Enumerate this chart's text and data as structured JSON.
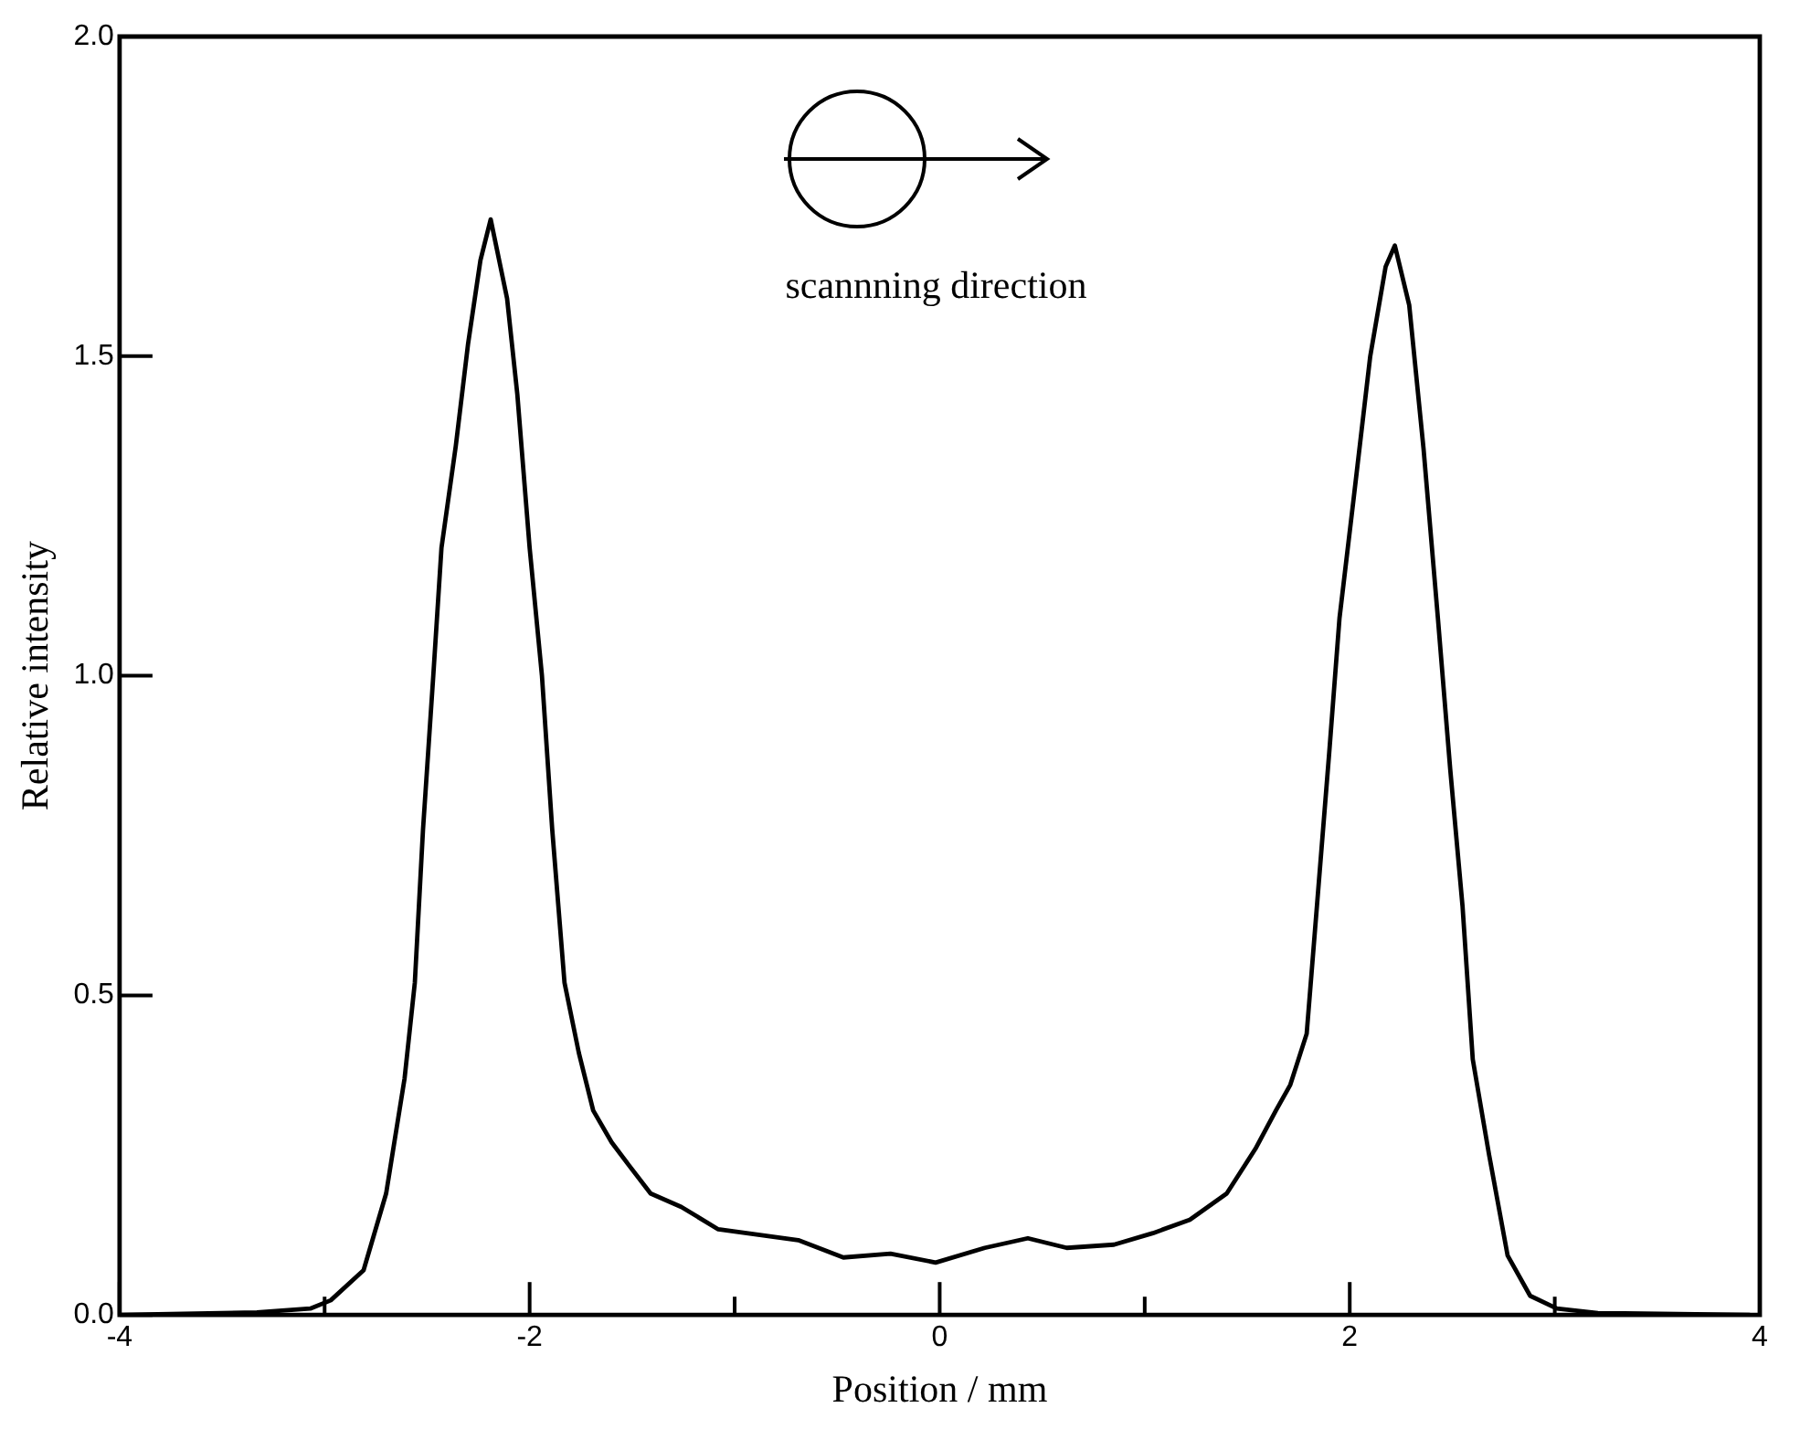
{
  "chart_data": {
    "type": "line",
    "xlabel": "Position / mm",
    "ylabel": "Relative intensity",
    "annotations": [
      "scannning direction"
    ],
    "x": [
      -4,
      -3.33,
      -3.07,
      -2.97,
      -2.81,
      -2.7,
      -2.61,
      -2.56,
      -2.52,
      -2.47,
      -2.43,
      -2.36,
      -2.3,
      -2.24,
      -2.19,
      -2.11,
      -2.06,
      -2.0,
      -1.94,
      -1.89,
      -1.83,
      -1.76,
      -1.69,
      -1.6,
      -1.52,
      -1.41,
      -1.26,
      -1.08,
      -0.69,
      -0.47,
      -0.24,
      -0.02,
      0.22,
      0.43,
      0.62,
      0.85,
      1.04,
      1.22,
      1.4,
      1.54,
      1.64,
      1.71,
      1.79,
      1.84,
      1.9,
      1.95,
      2.02,
      2.1,
      2.175,
      2.22,
      2.29,
      2.36,
      2.43,
      2.49,
      2.55,
      2.6,
      2.68,
      2.77,
      2.88,
      3.01,
      3.21,
      3.95
    ],
    "series": [
      {
        "color": "#000000",
        "values": [
          0,
          0.004,
          0.01,
          0.023,
          0.07,
          0.19,
          0.37,
          0.52,
          0.76,
          1.0,
          1.2,
          1.36,
          1.52,
          1.65,
          1.714,
          1.59,
          1.44,
          1.2,
          1.0,
          0.76,
          0.52,
          0.41,
          0.32,
          0.27,
          0.236,
          0.19,
          0.169,
          0.134,
          0.117,
          0.09,
          0.096,
          0.082,
          0.105,
          0.12,
          0.105,
          0.11,
          0.128,
          0.149,
          0.19,
          0.26,
          0.32,
          0.36,
          0.44,
          0.64,
          0.88,
          1.09,
          1.28,
          1.5,
          1.64,
          1.673,
          1.58,
          1.355,
          1.09,
          0.854,
          0.64,
          0.4,
          0.25,
          0.093,
          0.03,
          0.01,
          0.003,
          0
        ]
      }
    ],
    "xlim": [
      -4,
      4
    ],
    "xticks": [
      -4,
      {
        "value": -3,
        "label": null
      },
      -2,
      {
        "value": -1,
        "label": null
      },
      0,
      {
        "value": 1,
        "label": null
      },
      2,
      {
        "value": 3,
        "label": null
      },
      4
    ],
    "ylim": [
      0,
      2
    ],
    "yticks": [
      {
        "value": 0,
        "label": "0.0"
      },
      {
        "value": 0.5,
        "label": "0.5"
      },
      {
        "value": 1,
        "label": "1.0"
      },
      {
        "value": 1.5,
        "label": "1.5"
      },
      {
        "value": 2,
        "label": "2.0"
      }
    ],
    "marker": "none",
    "line_style": "solid",
    "legend": false
  }
}
